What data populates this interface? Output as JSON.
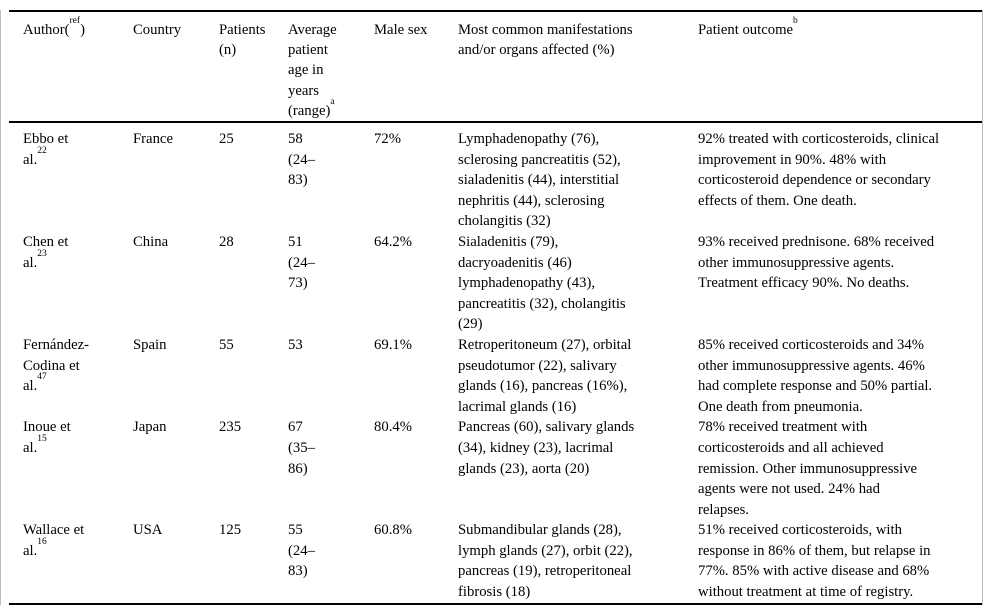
{
  "colors": {
    "background": "#ffffff",
    "rule": "#000000",
    "frame_border": "#bdbdbd",
    "text": "#000000"
  },
  "table": {
    "columns": {
      "author": {
        "prefix": "Author(",
        "ref_marker": "ref",
        "suffix": ")"
      },
      "country": "Country",
      "patients": "Patients\n(n)",
      "age": {
        "label": "Average\npatient\nage in\nyears\n(range)",
        "footnote_marker": "a"
      },
      "male_sex": "Male sex",
      "manifestations": "Most common manifestations\nand/or organs affected (%)",
      "outcome": {
        "label": "Patient outcome",
        "footnote_marker": "b"
      }
    },
    "rows": [
      {
        "author": "Ebbo et\nal.",
        "ref": "22",
        "country": "France",
        "patients": "25",
        "age": "58\n(24–\n83)",
        "male_sex": "72%",
        "manifestations": "Lymphadenopathy (76),\nsclerosing pancreatitis (52),\nsialadenitis (44), interstitial\nnephritis (44), sclerosing\ncholangitis (32)",
        "outcome": "92% treated with corticosteroids, clinical\nimprovement in 90%. 48% with\ncorticosteroid dependence or secondary\neffects of them. One death."
      },
      {
        "author": "Chen et\nal.",
        "ref": "23",
        "country": "China",
        "patients": "28",
        "age": "51\n(24–\n73)",
        "male_sex": "64.2%",
        "manifestations": "Sialadenitis (79),\ndacryoadenitis (46)\nlymphadenopathy (43),\npancreatitis (32), cholangitis\n(29)",
        "outcome": "93% received prednisone. 68% received\nother immunosuppressive agents.\nTreatment efficacy 90%. No deaths."
      },
      {
        "author": "Fernández-\nCodina et\nal.",
        "ref": "47",
        "country": "Spain",
        "patients": "55",
        "age": "53",
        "male_sex": "69.1%",
        "manifestations": "Retroperitoneum (27), orbital\npseudotumor (22), salivary\nglands (16), pancreas (16%),\nlacrimal glands (16)",
        "outcome": "85% received corticosteroids and 34%\nother immunosuppressive agents. 46%\nhad complete response and 50% partial.\nOne death from pneumonia."
      },
      {
        "author": "Inoue et\nal.",
        "ref": "15",
        "country": "Japan",
        "patients": "235",
        "age": "67\n(35–\n86)",
        "male_sex": "80.4%",
        "manifestations": "Pancreas (60), salivary glands\n(34), kidney (23), lacrimal\nglands (23), aorta (20)",
        "outcome": "78% received treatment with\ncorticosteroids and all achieved\nremission. Other immunosuppressive\nagents were not used. 24% had\nrelapses."
      },
      {
        "author": "Wallace et\nal.",
        "ref": "16",
        "country": "USA",
        "patients": "125",
        "age": "55\n(24–\n83)",
        "male_sex": "60.8%",
        "manifestations": "Submandibular glands (28),\nlymph glands (27), orbit (22),\npancreas (19), retroperitoneal\nfibrosis (18)",
        "outcome": "51% received corticosteroids, with\nresponse in 86% of them, but relapse in\n77%. 85% with active disease and 68%\nwithout treatment at time of registry."
      }
    ]
  }
}
